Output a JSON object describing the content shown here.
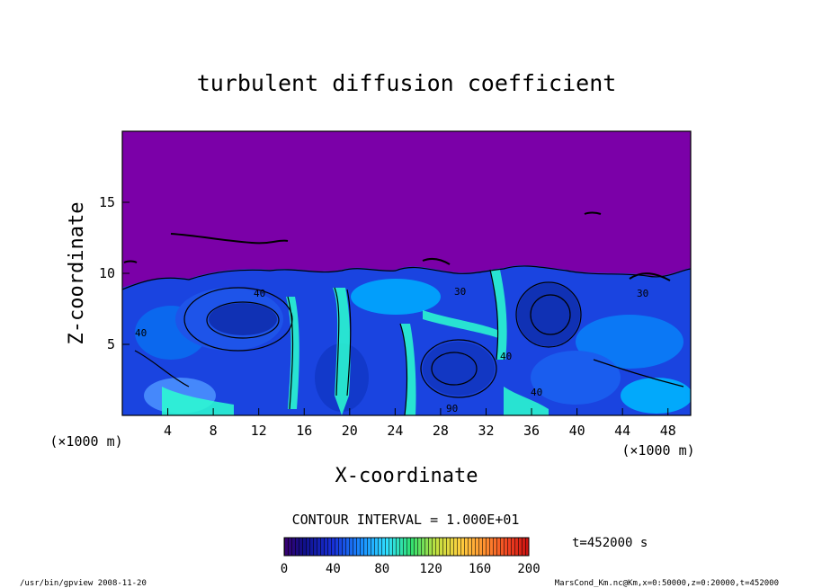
{
  "chart_data": {
    "type": "heatmap",
    "title": "turbulent diffusion coefficient",
    "xlabel": "X-coordinate",
    "ylabel": "Z-coordinate",
    "x_unit": "(×1000 m)",
    "xlim": [
      0,
      50
    ],
    "ylim": [
      0,
      20
    ],
    "x_ticks": [
      4,
      8,
      12,
      16,
      20,
      24,
      28,
      32,
      36,
      40,
      44,
      48
    ],
    "y_ticks": [
      5,
      10,
      15
    ],
    "contour_interval_label": "CONTOUR INTERVAL = 1.000E+01",
    "colorbar": {
      "min": 0,
      "max": 200,
      "ticks": [
        0,
        40,
        80,
        120,
        160,
        200
      ]
    },
    "time_label": "t=452000 s",
    "contour_labels": [
      "40",
      "40",
      "30",
      "40",
      "30",
      "40",
      "90"
    ],
    "regions": {
      "upper_layer_top_km": 10,
      "upper_layer_value": 0,
      "description_values": "mixed layer below ~10 km with values 0-60, local maxima near 80-100"
    }
  },
  "footer": {
    "left": "/usr/bin/gpview  2008-11-20",
    "right": "MarsCond_Km.nc@Km,x=0:50000,z=0:20000,t=452000"
  },
  "colors": {
    "background_top": "#7b00a8",
    "field_low": "#1a44e0",
    "field_mid": "#00b4ff",
    "field_high": "#2bffd0"
  }
}
